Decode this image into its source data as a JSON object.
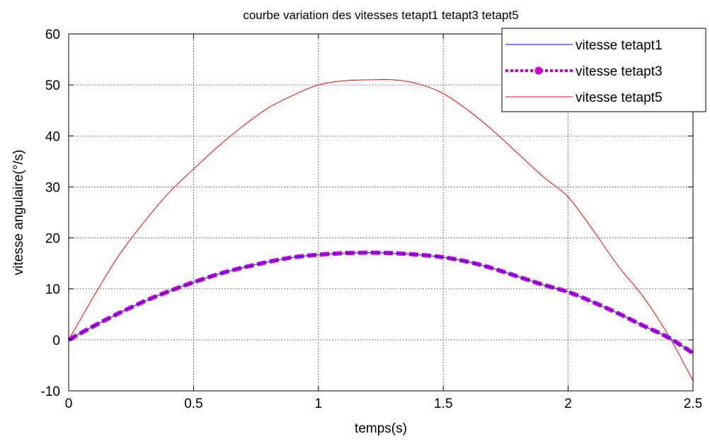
{
  "chart_data": {
    "type": "line",
    "title": "courbe variation des vitesses tetapt1 tetapt3 tetapt5",
    "xlabel": "temps(s)",
    "ylabel": "vitesse angulaire(°/s)",
    "xlim": [
      0,
      2.5
    ],
    "ylim": [
      -10,
      60
    ],
    "xticks": [
      0,
      0.5,
      1,
      1.5,
      2,
      2.5
    ],
    "xtick_labels": [
      "0",
      "0.5",
      "1",
      "1.5",
      "2",
      "2.5"
    ],
    "yticks": [
      -10,
      0,
      10,
      20,
      30,
      40,
      50,
      60
    ],
    "ytick_labels": [
      "-10",
      "0",
      "10",
      "20",
      "30",
      "40",
      "50",
      "60"
    ],
    "grid": true,
    "legend_position": "top-right",
    "x": [
      0,
      0.1,
      0.2,
      0.3,
      0.4,
      0.5,
      0.6,
      0.7,
      0.8,
      0.9,
      1.0,
      1.1,
      1.2,
      1.3,
      1.4,
      1.5,
      1.6,
      1.7,
      1.8,
      1.9,
      2.0,
      2.1,
      2.2,
      2.3,
      2.4,
      2.5
    ],
    "series": [
      {
        "name": "vitesse tetapt1",
        "color": "#0000ff",
        "line_width": 1,
        "dash": "solid",
        "marker": "none",
        "values": [
          0,
          2.7,
          5.2,
          7.5,
          9.5,
          11.3,
          12.9,
          14.2,
          15.3,
          16.2,
          16.7,
          17.0,
          17.1,
          17.0,
          16.7,
          16.2,
          15.3,
          14.0,
          12.4,
          10.8,
          9.4,
          7.4,
          5.2,
          2.8,
          0.5,
          -2.6
        ]
      },
      {
        "name": "vitesse tetapt3",
        "color": "#cc00cc",
        "line_width": 6,
        "dash": "dotted",
        "marker": "circle",
        "values": [
          0,
          2.7,
          5.2,
          7.5,
          9.5,
          11.3,
          12.9,
          14.2,
          15.3,
          16.2,
          16.7,
          17.0,
          17.1,
          17.0,
          16.7,
          16.2,
          15.3,
          14.0,
          12.4,
          10.8,
          9.4,
          7.4,
          5.2,
          2.8,
          0.5,
          -2.6
        ]
      },
      {
        "name": "vitesse tetapt5",
        "color": "#ff0000",
        "line_width": 1,
        "dash": "solid",
        "marker": "none",
        "values": [
          0,
          8.5,
          16.5,
          23.0,
          28.8,
          33.5,
          38.0,
          42.0,
          45.5,
          48.0,
          50.0,
          50.8,
          51.0,
          51.0,
          50.2,
          48.3,
          45.0,
          41.0,
          36.5,
          32.0,
          28.0,
          21.5,
          14.5,
          8.5,
          1.0,
          -8.0
        ]
      }
    ]
  }
}
